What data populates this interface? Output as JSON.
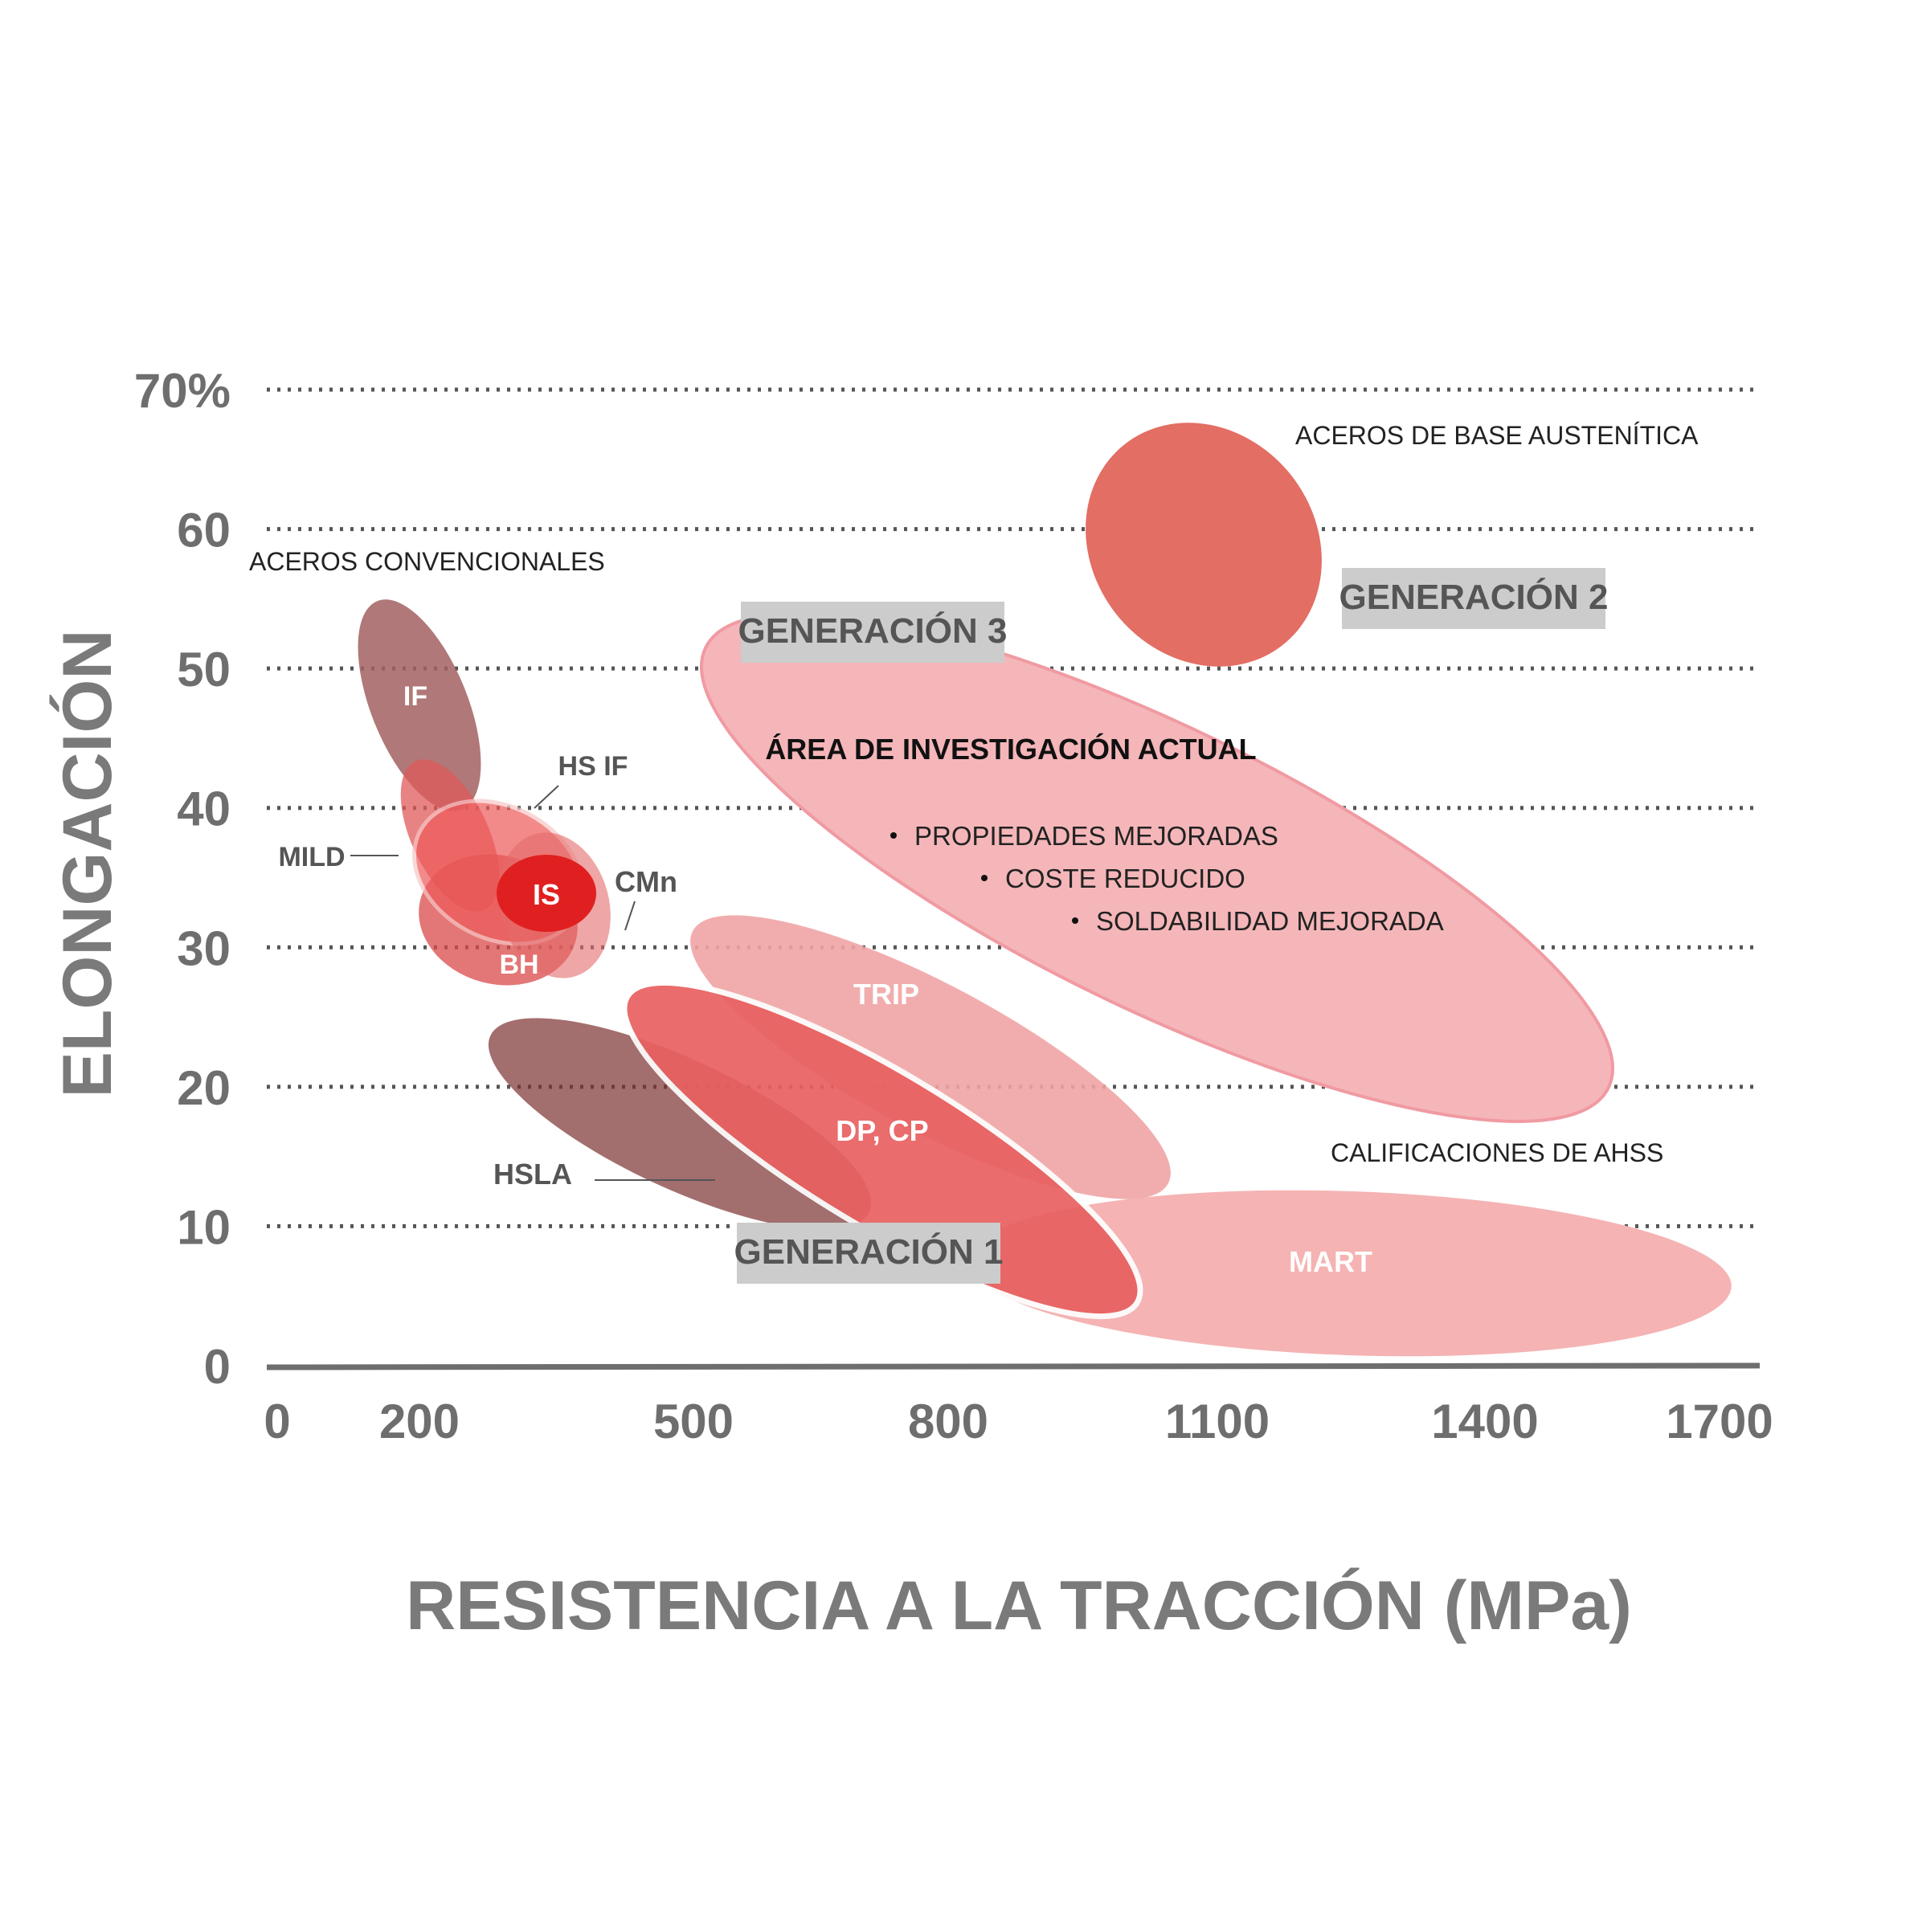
{
  "chart_data": {
    "type": "scatter",
    "title": "",
    "xlabel": "RESISTENCIA A LA TRACCIÓN (MPa)",
    "ylabel": "ELONGACIÓN",
    "x_ticks": [
      "0",
      "200",
      "500",
      "800",
      "1100",
      "1400",
      "1700"
    ],
    "y_ticks": [
      "0",
      "10",
      "20",
      "30",
      "40",
      "50",
      "60",
      "70%"
    ],
    "xlim": [
      0,
      1700
    ],
    "ylim": [
      0,
      70
    ],
    "grid": "horizontal dotted",
    "regions": [
      {
        "name": "IF",
        "label": "IF",
        "x_range": [
          130,
          270
        ],
        "y_range": [
          39,
          55
        ],
        "color": "#a26060"
      },
      {
        "name": "MILD",
        "label": "MILD",
        "x_range": [
          160,
          300
        ],
        "y_range": [
          31,
          44
        ],
        "color": "#e05a5a"
      },
      {
        "name": "HS IF",
        "label": "HS IF",
        "x_range": [
          180,
          390
        ],
        "y_range": [
          30,
          42
        ],
        "color": "#ee5a5a"
      },
      {
        "name": "BH",
        "label": "BH",
        "x_range": [
          170,
          400
        ],
        "y_range": [
          25,
          36
        ],
        "color": "#d94848"
      },
      {
        "name": "IS",
        "label": "IS",
        "x_range": [
          250,
          360
        ],
        "y_range": [
          31,
          37
        ],
        "color": "#e02020"
      },
      {
        "name": "CMn",
        "label": "CMn",
        "x_range": [
          270,
          430
        ],
        "y_range": [
          27,
          40
        ],
        "color": "#e56b6b"
      },
      {
        "name": "HSLA",
        "label": "HSLA",
        "x_range": [
          270,
          740
        ],
        "y_range": [
          12,
          26
        ],
        "color": "#7a3030"
      },
      {
        "name": "TRIP",
        "label": "TRIP",
        "x_range": [
          460,
          1000
        ],
        "y_range": [
          12,
          32
        ],
        "color": "#f0a4a4"
      },
      {
        "name": "DP, CP",
        "label": "DP, CP",
        "x_range": [
          370,
          1010
        ],
        "y_range": [
          6,
          28
        ],
        "color": "#e96060"
      },
      {
        "name": "MART",
        "label": "MART",
        "x_range": [
          680,
          1650
        ],
        "y_range": [
          3,
          15
        ],
        "color": "#f5b3b3"
      },
      {
        "name": "Área de investigación actual",
        "label": "ÁREA DE INVESTIGACIÓN ACTUAL",
        "x_range": [
          460,
          1600
        ],
        "y_range": [
          20,
          50
        ],
        "color": "#f5b6b9"
      },
      {
        "name": "Aceros de base austenítica",
        "label": "",
        "x_range": [
          920,
          1210
        ],
        "y_range": [
          50,
          68
        ],
        "color": "#e36e64"
      }
    ]
  },
  "annotations": {
    "conventional": "ACEROS CONVENCIONALES",
    "austenitic": "ACEROS DE BASE AUSTENÍTICA",
    "ahss": "CALIFICACIONES DE AHSS",
    "gen1": "GENERACIÓN 1",
    "gen2": "GENERACIÓN 2",
    "gen3": "GENERACIÓN 3",
    "research_title": "ÁREA DE INVESTIGACIÓN ACTUAL",
    "research_bullets": [
      "PROPIEDADES MEJORADAS",
      "COSTE REDUCIDO",
      "SOLDABILIDAD MEJORADA"
    ]
  },
  "colors": {
    "axis": "#6e6e6e",
    "gridline": "#555555",
    "gen_box": "#cccccc"
  }
}
